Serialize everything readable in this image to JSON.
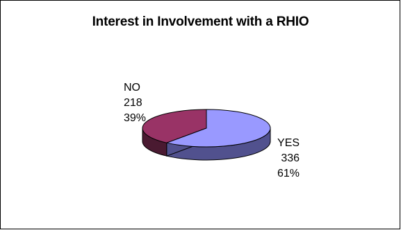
{
  "chart_data": {
    "type": "pie",
    "title": "Interest in Involvement with a RHIO",
    "slices": [
      {
        "label": "YES",
        "value": 336,
        "percent": "61%",
        "color": "#9999ff",
        "shade": "#51518e"
      },
      {
        "label": "NO",
        "value": 218,
        "percent": "39%",
        "color": "#993366",
        "shade": "#4a1a31"
      }
    ],
    "three_d": true,
    "legend": "none"
  }
}
